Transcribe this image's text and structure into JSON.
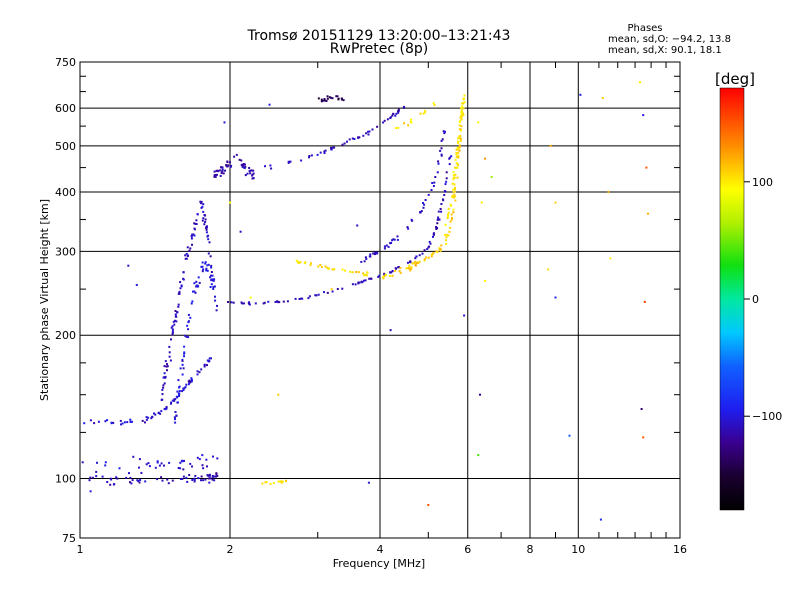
{
  "chart_data": {
    "type": "scatter",
    "title": "Tromsø 20151129 13:20:00–13:21:43",
    "subtitle": "RwPretec (8p)",
    "xlabel": "Frequency [MHz]",
    "ylabel": "Stationary phase Virtual Height [km]",
    "x_scale": "log",
    "y_scale": "log",
    "xlim": [
      1,
      16
    ],
    "ylim": [
      75,
      750
    ],
    "x_ticks": [
      1,
      2,
      4,
      6,
      8,
      10,
      16
    ],
    "x_tick_labels": [
      "1",
      "2",
      "4",
      "6",
      "8",
      "10",
      "16"
    ],
    "y_ticks": [
      75,
      100,
      200,
      300,
      400,
      500,
      600,
      750
    ],
    "y_tick_labels": [
      "75",
      "100",
      "200",
      "300",
      "400",
      "500",
      "600",
      "750"
    ],
    "grid": true,
    "stats": {
      "heading": "Phases",
      "line_o": "mean, sd,O: −94.2, 13.8",
      "line_x": "mean, sd,X:  90.1, 18.1"
    },
    "colorbar": {
      "label": "[deg]",
      "min": -180,
      "max": 180,
      "ticks": [
        100,
        0,
        -100
      ],
      "tick_labels": [
        "100",
        "0",
        "−100"
      ]
    },
    "point_density": 0.35,
    "traces": [
      {
        "name": "low-echo",
        "phase": -110,
        "count": 180,
        "spread_km": 3,
        "path": [
          [
            1.0,
            100
          ],
          [
            1.2,
            99
          ],
          [
            1.5,
            99
          ],
          [
            1.8,
            100
          ],
          [
            1.9,
            101
          ]
        ]
      },
      {
        "name": "low-echo-upper",
        "phase": -105,
        "count": 110,
        "spread_km": 6,
        "path": [
          [
            1.0,
            106
          ],
          [
            1.3,
            107
          ],
          [
            1.6,
            108
          ],
          [
            1.9,
            110
          ]
        ]
      },
      {
        "name": "e-layer",
        "phase": -105,
        "count": 220,
        "spread_km": 2,
        "path": [
          [
            1.0,
            131
          ],
          [
            1.2,
            131
          ],
          [
            1.35,
            133
          ],
          [
            1.45,
            138
          ],
          [
            1.55,
            146
          ],
          [
            1.65,
            158
          ],
          [
            1.75,
            170
          ],
          [
            1.85,
            180
          ]
        ]
      },
      {
        "name": "e-layer-column",
        "phase": -110,
        "count": 320,
        "spread_km": 12,
        "path": [
          [
            1.45,
            145
          ],
          [
            1.5,
            175
          ],
          [
            1.55,
            215
          ],
          [
            1.6,
            260
          ],
          [
            1.65,
            300
          ],
          [
            1.7,
            340
          ],
          [
            1.75,
            380
          ],
          [
            1.8,
            330
          ],
          [
            1.85,
            250
          ]
        ]
      },
      {
        "name": "e-layer-column-2",
        "phase": -100,
        "count": 220,
        "spread_km": 14,
        "path": [
          [
            1.55,
            130
          ],
          [
            1.6,
            170
          ],
          [
            1.65,
            210
          ],
          [
            1.7,
            250
          ],
          [
            1.78,
            280
          ],
          [
            1.85,
            260
          ],
          [
            1.88,
            230
          ]
        ]
      },
      {
        "name": "f-trace-o",
        "phase": -110,
        "count": 300,
        "spread_km": 2,
        "path": [
          [
            1.9,
            235
          ],
          [
            2.2,
            233
          ],
          [
            2.6,
            236
          ],
          [
            3.0,
            243
          ],
          [
            3.4,
            252
          ],
          [
            3.8,
            262
          ],
          [
            4.2,
            272
          ],
          [
            4.6,
            285
          ],
          [
            5.0,
            305
          ],
          [
            5.2,
            340
          ],
          [
            5.4,
            400
          ],
          [
            5.55,
            480
          ]
        ]
      },
      {
        "name": "f-trace-o-upper",
        "phase": -108,
        "count": 160,
        "spread_km": 5,
        "path": [
          [
            3.6,
            285
          ],
          [
            4.0,
            300
          ],
          [
            4.4,
            325
          ],
          [
            4.8,
            360
          ],
          [
            5.1,
            410
          ],
          [
            5.3,
            480
          ],
          [
            5.4,
            540
          ]
        ]
      },
      {
        "name": "f-trace-x",
        "phase": 110,
        "count": 280,
        "spread_km": 6,
        "path": [
          [
            4.0,
            265
          ],
          [
            4.5,
            275
          ],
          [
            5.0,
            290
          ],
          [
            5.4,
            310
          ],
          [
            5.6,
            360
          ],
          [
            5.7,
            430
          ],
          [
            5.8,
            520
          ],
          [
            5.85,
            620
          ]
        ]
      },
      {
        "name": "f-trace-x-high",
        "phase": 100,
        "count": 170,
        "spread_km": 18,
        "path": [
          [
            5.4,
            330
          ],
          [
            5.6,
            400
          ],
          [
            5.7,
            480
          ],
          [
            5.8,
            560
          ],
          [
            5.9,
            630
          ]
        ]
      },
      {
        "name": "f-trace-x-low",
        "phase": 105,
        "count": 90,
        "spread_km": 4,
        "path": [
          [
            2.7,
            285
          ],
          [
            3.0,
            280
          ],
          [
            3.4,
            272
          ],
          [
            3.8,
            268
          ]
        ]
      },
      {
        "name": "upper-branch",
        "phase": -110,
        "count": 150,
        "spread_km": 6,
        "path": [
          [
            2.2,
            445
          ],
          [
            2.6,
            460
          ],
          [
            3.0,
            480
          ],
          [
            3.4,
            505
          ],
          [
            3.8,
            535
          ],
          [
            4.2,
            575
          ],
          [
            4.5,
            605
          ]
        ]
      },
      {
        "name": "upper-blob",
        "phase": -115,
        "count": 170,
        "spread_km": 18,
        "path": [
          [
            1.85,
            430
          ],
          [
            1.95,
            450
          ],
          [
            2.05,
            470
          ],
          [
            2.15,
            450
          ],
          [
            2.25,
            430
          ]
        ]
      },
      {
        "name": "top-blob",
        "phase": -140,
        "count": 60,
        "spread_km": 10,
        "path": [
          [
            3.0,
            630
          ],
          [
            3.1,
            620
          ],
          [
            3.2,
            635
          ],
          [
            3.4,
            625
          ]
        ]
      },
      {
        "name": "yellow-patch",
        "phase": 105,
        "count": 40,
        "spread_km": 1,
        "path": [
          [
            2.3,
            98
          ],
          [
            2.45,
            98
          ],
          [
            2.6,
            99
          ]
        ]
      },
      {
        "name": "upper-yellow",
        "phase": 100,
        "count": 40,
        "spread_km": 10,
        "path": [
          [
            4.3,
            545
          ],
          [
            4.6,
            560
          ],
          [
            4.9,
            590
          ],
          [
            5.2,
            620
          ]
        ]
      }
    ],
    "scatter_points": [
      [
        6.3,
        560,
        90
      ],
      [
        6.5,
        470,
        130
      ],
      [
        6.7,
        430,
        60
      ],
      [
        6.4,
        380,
        100
      ],
      [
        6.5,
        260,
        95
      ],
      [
        6.35,
        150,
        -120
      ],
      [
        6.3,
        112,
        40
      ],
      [
        5.9,
        220,
        -100
      ],
      [
        5.0,
        88,
        150
      ],
      [
        8.8,
        500,
        120
      ],
      [
        9.0,
        380,
        110
      ],
      [
        8.7,
        275,
        105
      ],
      [
        9.0,
        240,
        -90
      ],
      [
        9.6,
        123,
        -60
      ],
      [
        10.1,
        640,
        -100
      ],
      [
        11.2,
        630,
        110
      ],
      [
        11.5,
        400,
        120
      ],
      [
        11.6,
        290,
        100
      ],
      [
        11.1,
        82,
        -90
      ],
      [
        13.3,
        680,
        100
      ],
      [
        13.5,
        580,
        -100
      ],
      [
        13.7,
        450,
        150
      ],
      [
        13.8,
        360,
        120
      ],
      [
        13.6,
        235,
        160
      ],
      [
        13.4,
        140,
        -130
      ],
      [
        13.5,
        122,
        150
      ],
      [
        2.5,
        150,
        110
      ],
      [
        2.2,
        240,
        95
      ],
      [
        1.3,
        255,
        -100
      ],
      [
        1.25,
        280,
        -110
      ],
      [
        2.0,
        380,
        95
      ],
      [
        1.95,
        560,
        -100
      ],
      [
        3.2,
        250,
        110
      ],
      [
        3.8,
        98,
        -100
      ],
      [
        3.6,
        340,
        -105
      ],
      [
        4.2,
        205,
        -110
      ],
      [
        2.4,
        610,
        -100
      ],
      [
        2.1,
        330,
        -110
      ],
      [
        1.15,
        97,
        -120
      ],
      [
        1.05,
        94,
        -100
      ]
    ]
  }
}
